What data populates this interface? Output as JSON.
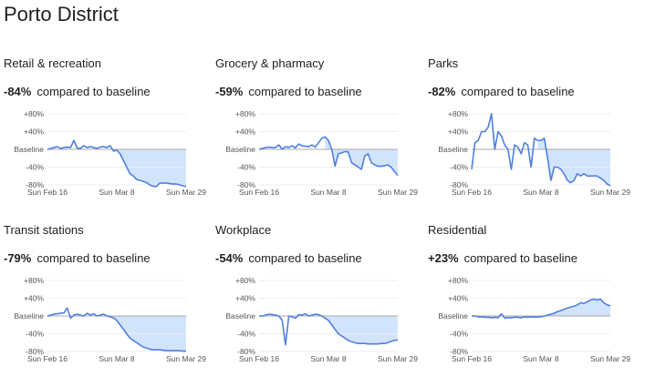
{
  "page_title": "Porto District",
  "chart_data": [
    {
      "type": "area",
      "title": "Retail & recreation",
      "change_value": "-84%",
      "change_text": "compared to baseline",
      "y_ticks": [
        "+80%",
        "+40%",
        "Baseline",
        "-40%",
        "-80%"
      ],
      "y_tick_values": [
        80,
        40,
        0,
        -40,
        -80
      ],
      "x_ticks": [
        "Sun Feb 16",
        "Sun Mar 8",
        "Sun Mar 29"
      ],
      "x_tick_days": [
        0,
        21,
        42
      ],
      "ylim": [
        -80,
        80
      ],
      "xlim": [
        0,
        42
      ],
      "shade_from_day": 20,
      "series": [
        {
          "values": [
            0,
            2,
            4,
            6,
            2,
            4,
            5,
            4,
            20,
            3,
            2,
            8,
            4,
            6,
            4,
            2,
            5,
            6,
            4,
            8,
            -4,
            -2,
            -10,
            -25,
            -40,
            -55,
            -60,
            -68,
            -70,
            -72,
            -75,
            -80,
            -83,
            -84,
            -76,
            -76,
            -76,
            -77,
            -78,
            -78,
            -80,
            -82,
            -84
          ]
        }
      ]
    },
    {
      "type": "area",
      "title": "Grocery & pharmacy",
      "change_value": "-59%",
      "change_text": "compared to baseline",
      "y_ticks": [
        "+80%",
        "+40%",
        "Baseline",
        "-40%",
        "-80%"
      ],
      "y_tick_values": [
        80,
        40,
        0,
        -40,
        -80
      ],
      "x_ticks": [
        "Sun Feb 16",
        "Sun Mar 8",
        "Sun Mar 29"
      ],
      "x_tick_days": [
        0,
        21,
        42
      ],
      "ylim": [
        -80,
        80
      ],
      "xlim": [
        0,
        42
      ],
      "shade_from_day": 20,
      "series": [
        {
          "values": [
            0,
            2,
            4,
            5,
            4,
            4,
            10,
            0,
            6,
            4,
            8,
            3,
            12,
            8,
            7,
            6,
            10,
            5,
            15,
            25,
            28,
            20,
            0,
            -38,
            -10,
            -8,
            -5,
            -6,
            -30,
            -35,
            -40,
            -45,
            -15,
            -10,
            -30,
            -35,
            -38,
            -38,
            -37,
            -35,
            -40,
            -50,
            -59
          ]
        }
      ]
    },
    {
      "type": "area",
      "title": "Parks",
      "change_value": "-82%",
      "change_text": "compared to baseline",
      "y_ticks": [
        "+80%",
        "+40%",
        "Baseline",
        "-40%",
        "-80%"
      ],
      "y_tick_values": [
        80,
        40,
        0,
        -40,
        -80
      ],
      "x_ticks": [
        "Sun Feb 16",
        "Sun Mar 8",
        "Sun Mar 29"
      ],
      "x_tick_days": [
        0,
        21,
        42
      ],
      "ylim": [
        -80,
        80
      ],
      "xlim": [
        0,
        42
      ],
      "shade_from_day": 20,
      "series": [
        {
          "values": [
            -45,
            15,
            20,
            40,
            40,
            50,
            80,
            0,
            40,
            30,
            10,
            0,
            -45,
            10,
            5,
            -10,
            15,
            10,
            -40,
            25,
            20,
            20,
            25,
            -20,
            -70,
            -40,
            -40,
            -45,
            -55,
            -70,
            -75,
            -70,
            -55,
            -60,
            -55,
            -60,
            -60,
            -60,
            -60,
            -65,
            -70,
            -78,
            -82
          ]
        }
      ]
    },
    {
      "type": "area",
      "title": "Transit stations",
      "change_value": "-79%",
      "change_text": "compared to baseline",
      "y_ticks": [
        "+80%",
        "+40%",
        "Baseline",
        "-40%",
        "-80%"
      ],
      "y_tick_values": [
        80,
        40,
        0,
        -40,
        -80
      ],
      "x_ticks": [
        "Sun Feb 16",
        "Sun Mar 8",
        "Sun Mar 29"
      ],
      "x_tick_days": [
        0,
        21,
        42
      ],
      "ylim": [
        -80,
        80
      ],
      "xlim": [
        0,
        42
      ],
      "shade_from_day": 20,
      "series": [
        {
          "values": [
            0,
            2,
            4,
            5,
            6,
            7,
            18,
            -5,
            2,
            4,
            2,
            0,
            6,
            2,
            5,
            0,
            2,
            4,
            0,
            -2,
            -4,
            -10,
            -20,
            -30,
            -40,
            -50,
            -55,
            -60,
            -65,
            -70,
            -72,
            -75,
            -76,
            -76,
            -76,
            -77,
            -78,
            -78,
            -78,
            -78,
            -78,
            -79,
            -79
          ]
        }
      ]
    },
    {
      "type": "area",
      "title": "Workplace",
      "change_value": "-54%",
      "change_text": "compared to baseline",
      "y_ticks": [
        "+80%",
        "+40%",
        "Baseline",
        "-40%",
        "-80%"
      ],
      "y_tick_values": [
        80,
        40,
        0,
        -40,
        -80
      ],
      "x_ticks": [
        "Sun Feb 16",
        "Sun Mar 8",
        "Sun Mar 29"
      ],
      "x_tick_days": [
        0,
        21,
        42
      ],
      "ylim": [
        -80,
        80
      ],
      "xlim": [
        0,
        42
      ],
      "shade_from_day": 20,
      "series": [
        {
          "values": [
            0,
            0,
            2,
            4,
            3,
            2,
            0,
            -10,
            -65,
            0,
            -2,
            -5,
            3,
            2,
            5,
            0,
            2,
            4,
            3,
            0,
            -5,
            -10,
            -20,
            -30,
            -40,
            -45,
            -50,
            -55,
            -58,
            -60,
            -62,
            -62,
            -62,
            -63,
            -63,
            -63,
            -63,
            -62,
            -62,
            -60,
            -57,
            -55,
            -54
          ]
        }
      ]
    },
    {
      "type": "area",
      "title": "Residential",
      "change_value": "+23%",
      "change_text": "compared to baseline",
      "y_ticks": [
        "+80%",
        "+40%",
        "Baseline",
        "-40%",
        "-80%"
      ],
      "y_tick_values": [
        80,
        40,
        0,
        -40,
        -80
      ],
      "x_ticks": [
        "Sun Feb 16",
        "Sun Mar 8",
        "Sun Mar 29"
      ],
      "x_tick_days": [
        0,
        21,
        42
      ],
      "ylim": [
        -80,
        80
      ],
      "xlim": [
        0,
        42
      ],
      "shade_from_day": 0,
      "series": [
        {
          "values": [
            0,
            0,
            -2,
            -2,
            -3,
            -3,
            -4,
            -3,
            -4,
            5,
            -5,
            -4,
            -4,
            -3,
            -3,
            -4,
            -2,
            -3,
            -2,
            -3,
            -2,
            -2,
            0,
            2,
            4,
            6,
            10,
            12,
            15,
            18,
            20,
            22,
            25,
            30,
            28,
            32,
            36,
            38,
            36,
            38,
            30,
            25,
            23
          ]
        }
      ]
    }
  ]
}
